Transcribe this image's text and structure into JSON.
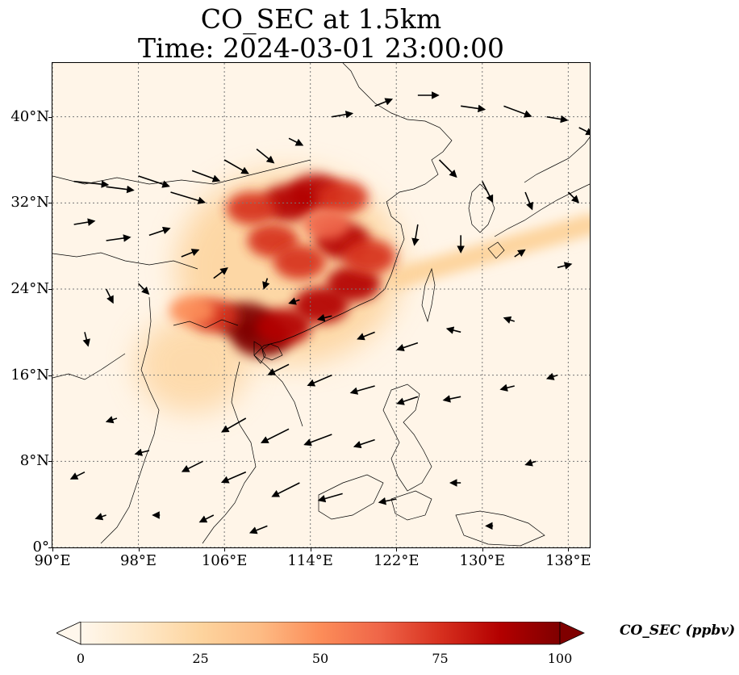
{
  "title": {
    "line1": "CO_SEC at 1.5km",
    "line2": "Time: 2024-03-01 23:00:00"
  },
  "map": {
    "extent": {
      "lon_min": 90,
      "lon_max": 140,
      "lat_min": 0,
      "lat_max": 45
    },
    "projection": "PlateCarree",
    "gridlines": "dotted",
    "coastlines": true,
    "country_borders": true,
    "background_color": "#fff5e8"
  },
  "axes": {
    "lat_ticks": [
      {
        "value": 0,
        "label": "0°"
      },
      {
        "value": 8,
        "label": "8°N"
      },
      {
        "value": 16,
        "label": "16°N"
      },
      {
        "value": 24,
        "label": "24°N"
      },
      {
        "value": 32,
        "label": "32°N"
      },
      {
        "value": 40,
        "label": "40°N"
      }
    ],
    "lon_ticks": [
      {
        "value": 90,
        "label": "90°E"
      },
      {
        "value": 98,
        "label": "98°E"
      },
      {
        "value": 106,
        "label": "106°E"
      },
      {
        "value": 114,
        "label": "114°E"
      },
      {
        "value": 122,
        "label": "122°E"
      },
      {
        "value": 130,
        "label": "130°E"
      },
      {
        "value": 138,
        "label": "138°E"
      }
    ]
  },
  "colorbar": {
    "label": "CO_SEC (ppbv)",
    "min": 0,
    "max": 100,
    "extend": "both",
    "colormap": "OrRd",
    "ticks": [
      "0",
      "25",
      "50",
      "75",
      "100"
    ],
    "stops": [
      "#fff7ec",
      "#fee8c8",
      "#fdd49e",
      "#fdbb84",
      "#fc8d59",
      "#ef6548",
      "#d7301f",
      "#b30000",
      "#7f0000"
    ]
  },
  "field": {
    "description_units": "ppbv",
    "hotspots": [
      {
        "lon": 109.5,
        "lat": 19.5,
        "value": 100
      },
      {
        "lon": 108.0,
        "lat": 21.0,
        "value": 95
      },
      {
        "lon": 111.5,
        "lat": 20.5,
        "value": 90
      },
      {
        "lon": 115.0,
        "lat": 22.5,
        "value": 90
      },
      {
        "lon": 118.0,
        "lat": 24.5,
        "value": 85
      },
      {
        "lon": 117.0,
        "lat": 28.5,
        "value": 90
      },
      {
        "lon": 119.5,
        "lat": 27.0,
        "value": 80
      },
      {
        "lon": 112.0,
        "lat": 32.0,
        "value": 90
      },
      {
        "lon": 114.5,
        "lat": 33.0,
        "value": 85
      },
      {
        "lon": 117.0,
        "lat": 32.5,
        "value": 75
      },
      {
        "lon": 110.5,
        "lat": 28.5,
        "value": 75
      },
      {
        "lon": 113.0,
        "lat": 26.5,
        "value": 80
      },
      {
        "lon": 105.0,
        "lat": 21.5,
        "value": 70
      },
      {
        "lon": 103.0,
        "lat": 22.0,
        "value": 55
      },
      {
        "lon": 108.5,
        "lat": 31.5,
        "value": 70
      },
      {
        "lon": 115.5,
        "lat": 30.0,
        "value": 60
      }
    ],
    "plume": {
      "from_lon": 122,
      "from_lat": 25,
      "to_lon": 140,
      "to_lat": 30,
      "value": 22
    },
    "background_value": 5
  },
  "wind": {
    "units": "m/s",
    "vectors": [
      {
        "lon": 92,
        "lat": 34,
        "u": 10,
        "v": -1
      },
      {
        "lon": 95,
        "lat": 33.5,
        "u": 8,
        "v": -1
      },
      {
        "lon": 98,
        "lat": 34.5,
        "u": 9,
        "v": -3
      },
      {
        "lon": 101,
        "lat": 33,
        "u": 10,
        "v": -3
      },
      {
        "lon": 103,
        "lat": 35,
        "u": 8,
        "v": -3
      },
      {
        "lon": 106,
        "lat": 36,
        "u": 7,
        "v": -4
      },
      {
        "lon": 109,
        "lat": 37,
        "u": 5,
        "v": -4
      },
      {
        "lon": 112,
        "lat": 38,
        "u": 4,
        "v": -2
      },
      {
        "lon": 116,
        "lat": 40,
        "u": 6,
        "v": 1
      },
      {
        "lon": 120,
        "lat": 41,
        "u": 5,
        "v": 2
      },
      {
        "lon": 124,
        "lat": 42,
        "u": 6,
        "v": 0
      },
      {
        "lon": 128,
        "lat": 41,
        "u": 7,
        "v": -1
      },
      {
        "lon": 132,
        "lat": 41,
        "u": 8,
        "v": -3
      },
      {
        "lon": 136,
        "lat": 40,
        "u": 6,
        "v": -1
      },
      {
        "lon": 139,
        "lat": 39,
        "u": 4,
        "v": -2
      },
      {
        "lon": 126,
        "lat": 36,
        "u": 5,
        "v": -5
      },
      {
        "lon": 130,
        "lat": 34,
        "u": 3,
        "v": -6
      },
      {
        "lon": 134,
        "lat": 33,
        "u": 2,
        "v": -5
      },
      {
        "lon": 138,
        "lat": 33,
        "u": 3,
        "v": -3
      },
      {
        "lon": 124,
        "lat": 30,
        "u": -1,
        "v": -6
      },
      {
        "lon": 128,
        "lat": 29,
        "u": 0,
        "v": -5
      },
      {
        "lon": 133,
        "lat": 27,
        "u": 3,
        "v": 2
      },
      {
        "lon": 137,
        "lat": 26,
        "u": 4,
        "v": 1
      },
      {
        "lon": 92,
        "lat": 30,
        "u": 6,
        "v": 1
      },
      {
        "lon": 95,
        "lat": 28.5,
        "u": 7,
        "v": 1
      },
      {
        "lon": 99,
        "lat": 29,
        "u": 6,
        "v": 2
      },
      {
        "lon": 102,
        "lat": 27,
        "u": 5,
        "v": 2
      },
      {
        "lon": 105,
        "lat": 25,
        "u": 4,
        "v": 3
      },
      {
        "lon": 95,
        "lat": 24,
        "u": 2,
        "v": -4
      },
      {
        "lon": 98,
        "lat": 24.5,
        "u": 3,
        "v": -3
      },
      {
        "lon": 93,
        "lat": 20,
        "u": 1,
        "v": -4
      },
      {
        "lon": 110,
        "lat": 25,
        "u": -1,
        "v": -3
      },
      {
        "lon": 113,
        "lat": 23,
        "u": -3,
        "v": -1
      },
      {
        "lon": 116,
        "lat": 21.5,
        "u": -4,
        "v": -1
      },
      {
        "lon": 120,
        "lat": 20,
        "u": -5,
        "v": -2
      },
      {
        "lon": 124,
        "lat": 19,
        "u": -6,
        "v": -2
      },
      {
        "lon": 128,
        "lat": 20,
        "u": -4,
        "v": 1
      },
      {
        "lon": 133,
        "lat": 21,
        "u": -3,
        "v": 1
      },
      {
        "lon": 112,
        "lat": 17,
        "u": -6,
        "v": -3
      },
      {
        "lon": 116,
        "lat": 16,
        "u": -7,
        "v": -3
      },
      {
        "lon": 120,
        "lat": 15,
        "u": -7,
        "v": -2
      },
      {
        "lon": 124,
        "lat": 14,
        "u": -6,
        "v": -2
      },
      {
        "lon": 128,
        "lat": 14,
        "u": -5,
        "v": -1
      },
      {
        "lon": 133,
        "lat": 15,
        "u": -4,
        "v": -1
      },
      {
        "lon": 137,
        "lat": 16,
        "u": -3,
        "v": -1
      },
      {
        "lon": 108,
        "lat": 12,
        "u": -7,
        "v": -4
      },
      {
        "lon": 112,
        "lat": 11,
        "u": -8,
        "v": -4
      },
      {
        "lon": 116,
        "lat": 10.5,
        "u": -8,
        "v": -3
      },
      {
        "lon": 120,
        "lat": 10,
        "u": -6,
        "v": -2
      },
      {
        "lon": 104,
        "lat": 8,
        "u": -6,
        "v": -3
      },
      {
        "lon": 108,
        "lat": 7,
        "u": -7,
        "v": -3
      },
      {
        "lon": 113,
        "lat": 6,
        "u": -8,
        "v": -4
      },
      {
        "lon": 117,
        "lat": 5,
        "u": -7,
        "v": -2
      },
      {
        "lon": 122,
        "lat": 4.5,
        "u": -5,
        "v": -1
      },
      {
        "lon": 96,
        "lat": 12,
        "u": -3,
        "v": -1
      },
      {
        "lon": 99,
        "lat": 9,
        "u": -4,
        "v": -1
      },
      {
        "lon": 93,
        "lat": 7,
        "u": -4,
        "v": -2
      },
      {
        "lon": 95,
        "lat": 3,
        "u": -3,
        "v": -1
      },
      {
        "lon": 100,
        "lat": 3,
        "u": -2,
        "v": 0
      },
      {
        "lon": 105,
        "lat": 3,
        "u": -4,
        "v": -2
      },
      {
        "lon": 110,
        "lat": 2,
        "u": -5,
        "v": -2
      },
      {
        "lon": 128,
        "lat": 6,
        "u": -3,
        "v": 0
      },
      {
        "lon": 135,
        "lat": 8,
        "u": -3,
        "v": -1
      },
      {
        "lon": 131,
        "lat": 2,
        "u": -2,
        "v": 0
      }
    ]
  }
}
